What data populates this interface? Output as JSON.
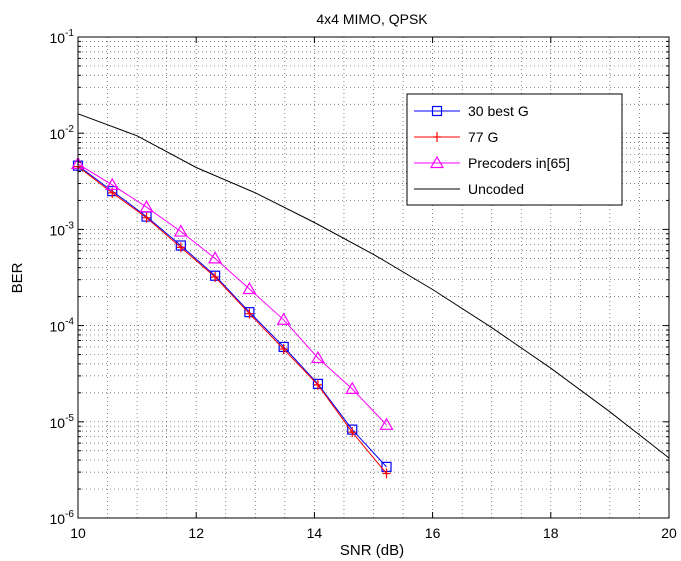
{
  "chart_data": {
    "type": "line",
    "title": "4x4 MIMO, QPSK",
    "xlabel": "SNR (dB)",
    "ylabel": "BER",
    "xlim": [
      10,
      20
    ],
    "ylim": [
      1e-06,
      0.1
    ],
    "yscale": "log",
    "xticks": [
      10,
      12,
      14,
      16,
      18,
      20
    ],
    "xtick_labels": [
      "10",
      "12",
      "14",
      "16",
      "18",
      "20"
    ],
    "ytick_exponents": [
      -6,
      -5,
      -4,
      -3,
      -2,
      -1
    ],
    "ytick_base": "10",
    "grid": "dotted major and minor",
    "legend_position": "top-right",
    "series": [
      {
        "name": "30 best G",
        "color": "#0000ff",
        "marker": "square",
        "x": [
          10.0,
          10.58,
          11.16,
          11.74,
          12.32,
          12.9,
          13.48,
          14.06,
          14.64,
          15.22
        ],
        "y": [
          0.0046,
          0.0025,
          0.00136,
          0.00068,
          0.00033,
          0.000138,
          6e-05,
          2.48e-05,
          8.3e-06,
          3.4e-06
        ]
      },
      {
        "name": "77 G",
        "color": "#ff0000",
        "marker": "plus",
        "x": [
          10.0,
          10.58,
          11.16,
          11.74,
          12.32,
          12.9,
          13.48,
          14.06,
          14.64,
          15.22
        ],
        "y": [
          0.0045,
          0.0024,
          0.00132,
          0.00065,
          0.00032,
          0.000133,
          5.7e-05,
          2.42e-05,
          7.8e-06,
          2.9e-06
        ]
      },
      {
        "name": "Precoders in[65]",
        "color": "#ff00ff",
        "marker": "triangle",
        "x": [
          10.0,
          10.58,
          11.16,
          11.74,
          12.32,
          12.9,
          13.48,
          14.06,
          14.64,
          15.22
        ],
        "y": [
          0.0048,
          0.0029,
          0.0017,
          0.00095,
          0.0005,
          0.00024,
          0.000115,
          4.6e-05,
          2.2e-05,
          9.3e-06
        ]
      },
      {
        "name": "Uncoded",
        "color": "#000000",
        "marker": "none",
        "x": [
          10,
          11,
          12,
          13,
          14,
          15,
          16,
          17,
          18,
          19,
          20
        ],
        "y": [
          0.0159,
          0.0094,
          0.0044,
          0.0024,
          0.00118,
          0.00055,
          0.000237,
          9.53e-05,
          3.61e-05,
          1.27e-05,
          4.2e-06
        ]
      }
    ]
  }
}
